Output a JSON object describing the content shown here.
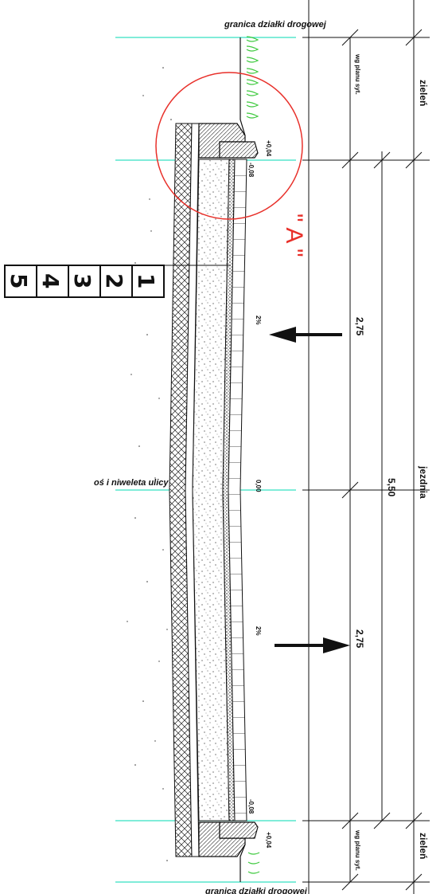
{
  "labels": {
    "boundary_top": "granica  działki  drogowej",
    "boundary_bottom": "granica  działki  drogowej",
    "axis": "oś  i  niweleta  ulicy"
  },
  "dimensions": {
    "lane_left": "2,75",
    "lane_right": "2,75",
    "total": "5,50",
    "slope_left": "2%",
    "slope_right": "2%",
    "elev_top_curb": "+0,04",
    "elev_top_gutter": "-0,08",
    "elev_axis": "0,00",
    "elev_bottom_gutter": "-0,08",
    "elev_bottom_curb": "+0,04"
  },
  "zones": {
    "green_top": "zieleń",
    "green_bottom": "zieleń",
    "roadway": "jezdnia",
    "plan_top": "wg planu syt.",
    "plan_bottom": "wg planu syt."
  },
  "detail_marker": "\" A \"",
  "layer_legend": [
    "1",
    "2",
    "3",
    "4",
    "5"
  ],
  "colors": {
    "guide_line": "#35e0c2",
    "detail_circle": "#e8302a",
    "ink": "#111111"
  }
}
